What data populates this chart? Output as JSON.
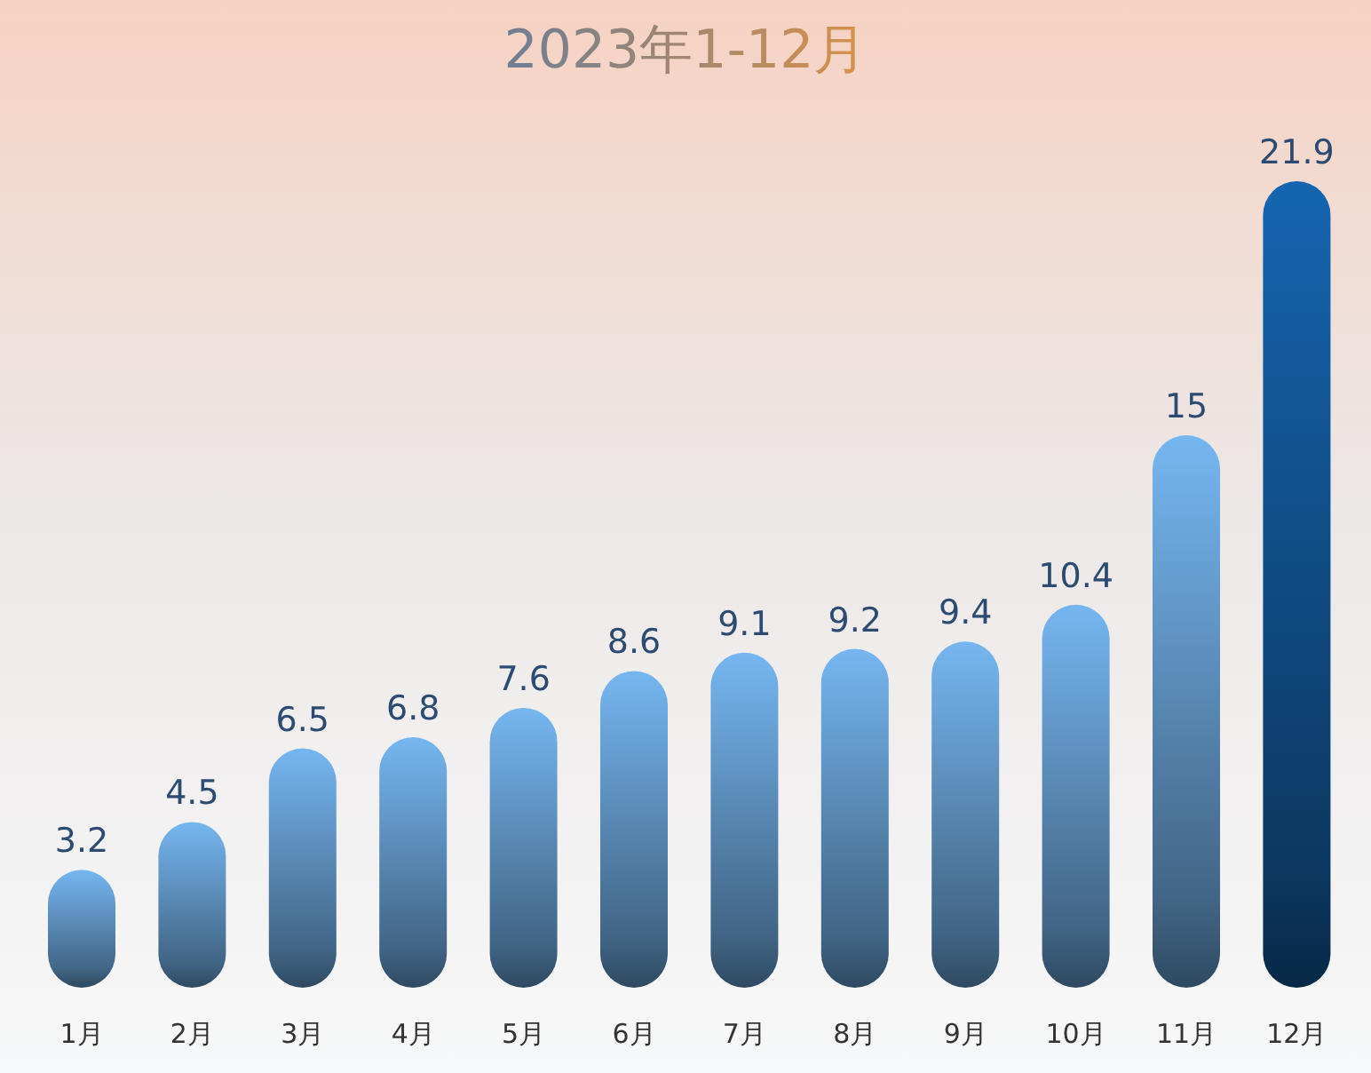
{
  "chart_data": {
    "type": "bar",
    "title": "2023年1-12月",
    "categories": [
      "1月",
      "2月",
      "3月",
      "4月",
      "5月",
      "6月",
      "7月",
      "8月",
      "9月",
      "10月",
      "11月",
      "12月"
    ],
    "values": [
      3.2,
      4.5,
      6.5,
      6.8,
      7.6,
      8.6,
      9.1,
      9.2,
      9.4,
      10.4,
      15,
      21.9
    ],
    "colors": [
      "#76b6f0",
      "#76b6f0",
      "#76b6f0",
      "#76b6f0",
      "#76b6f0",
      "#76b6f0",
      "#76b6f0",
      "#76b6f0",
      "#76b6f0",
      "#76b6f0",
      "#76b6f0",
      "#1565b0"
    ],
    "data_labels": true
  }
}
